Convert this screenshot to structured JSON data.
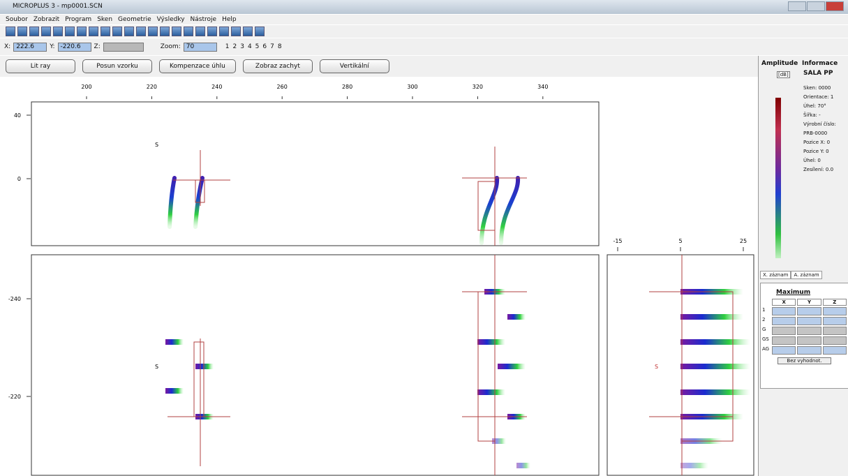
{
  "window": {
    "title": "MICROPLUS 3 - mp0001.SCN"
  },
  "menu": [
    "Soubor",
    "Zobrazit",
    "Program",
    "Sken",
    "Geometrie",
    "Výsledky",
    "Nástroje",
    "Help"
  ],
  "coords": {
    "x_label": "X:",
    "x_value": "222.6",
    "y_label": "Y:",
    "y_value": "-220.6",
    "z_label": "Z:",
    "zoom_label": "Zoom:",
    "zoom_value": "70",
    "pages": [
      "1",
      "2",
      "3",
      "4",
      "5",
      "6",
      "7",
      "8"
    ]
  },
  "buttons": [
    "Lit ray",
    "Posun vzorku",
    "Kompenzace úhlu",
    "Zobraz zachyt",
    "Vertikální"
  ],
  "plots": {
    "top_ticks": [
      200,
      220,
      240,
      260,
      280,
      300,
      320,
      340
    ],
    "xy_ticks": [
      40,
      0
    ],
    "xz_ticks": [
      -240,
      -220
    ],
    "side_ticks": [
      -15,
      5,
      25
    ],
    "marker": "S"
  },
  "amplitude": {
    "title": "Amplitude",
    "unit": "[dB]"
  },
  "info": {
    "title": "Informace",
    "name": "SALA PP",
    "lines": [
      "Sken: 0000",
      "Orientace: 1",
      "Úhel: 70°",
      "Šířka: -",
      "Výrobní číslo:",
      "PRB-0000",
      "Pozice X: 0",
      "Pozice Y: 0",
      "Úhel: 0",
      "Zesílení: 0.0"
    ]
  },
  "tabs": [
    "X. záznam",
    "A. záznam"
  ],
  "table": {
    "title": "Maximum",
    "columns": [
      "X",
      "Y",
      "Z"
    ],
    "rows": [
      "1",
      "2",
      "G",
      "GS",
      "AG"
    ],
    "action": "Bez vyhodnot."
  }
}
